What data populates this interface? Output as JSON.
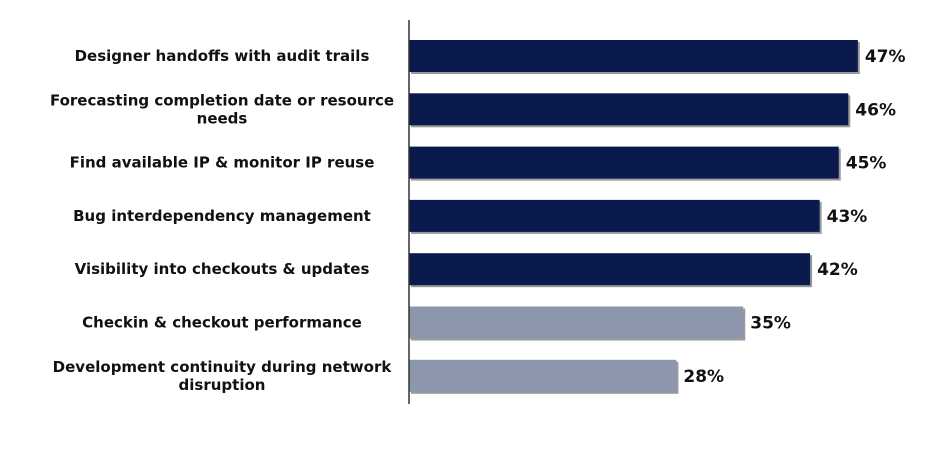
{
  "chart_data": {
    "type": "bar",
    "orientation": "horizontal",
    "title": "",
    "xlabel": "",
    "ylabel": "",
    "grid": false,
    "legend": "none",
    "xlim": [
      0,
      50
    ],
    "categories": [
      "Designer handoffs with audit trails",
      "Forecasting completion date or resource needs",
      "Find available IP & monitor IP reuse",
      "Bug interdependency management",
      "Visibility into checkouts & updates",
      "Checkin & checkout performance",
      "Development continuity during network disruption"
    ],
    "category_lines": [
      [
        "Designer handoffs with audit trails"
      ],
      [
        "Forecasting completion date or resource",
        "needs"
      ],
      [
        "Find available IP & monitor IP reuse"
      ],
      [
        "Bug interdependency management"
      ],
      [
        "Visibility into checkouts & updates"
      ],
      [
        "Checkin & checkout performance"
      ],
      [
        "Development continuity during network",
        "disruption"
      ]
    ],
    "values": [
      47,
      46,
      45,
      43,
      42,
      35,
      28
    ],
    "value_labels": [
      "47%",
      "46%",
      "45%",
      "43%",
      "42%",
      "35%",
      "28%"
    ],
    "bar_colors": [
      "#0a1a4d",
      "#0a1a4d",
      "#0a1a4d",
      "#0a1a4d",
      "#0a1a4d",
      "#8c97ad",
      "#8c97ad"
    ],
    "axis_color": "#333333",
    "shadow_color": "#9a9a9a"
  }
}
